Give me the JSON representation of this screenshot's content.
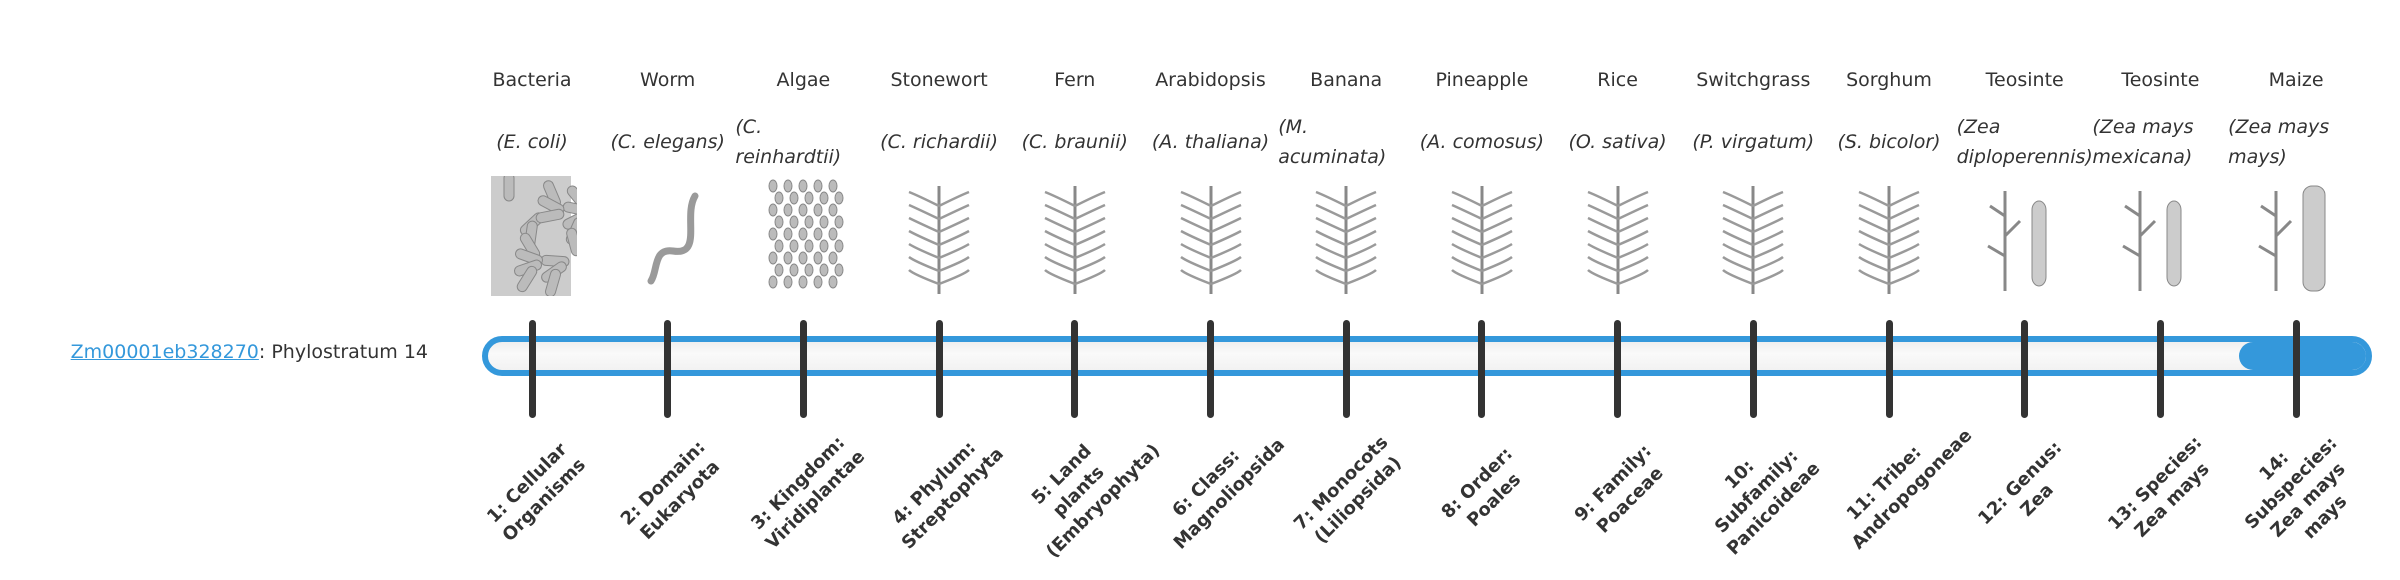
{
  "gene": {
    "id": "Zm00001eb328270",
    "suffix": ": Phylostratum 14"
  },
  "colors": {
    "accent": "#3498db",
    "tick": "#333333"
  },
  "progress": {
    "current": 14,
    "total": 14
  },
  "strata": [
    {
      "common": "Bacteria",
      "latin": "(E. coli)",
      "icon": "bacteria-icon",
      "rank": "1: Cellular Organisms"
    },
    {
      "common": "Worm",
      "latin": "(C. elegans)",
      "icon": "worm-icon",
      "rank": "2: Domain: Eukaryota"
    },
    {
      "common": "Algae",
      "latin": "(C. reinhardtii)",
      "icon": "algae-icon",
      "rank": "3: Kingdom: Viridiplantae"
    },
    {
      "common": "Stonewort",
      "latin": "(C. richardii)",
      "icon": "stonewort-icon",
      "rank": "4: Phylum: Streptophyta"
    },
    {
      "common": "Fern",
      "latin": "(C. braunii)",
      "icon": "fern-icon",
      "rank": "5: Land plants (Embryophyta)"
    },
    {
      "common": "Arabidopsis",
      "latin": "(A. thaliana)",
      "icon": "arabidopsis-icon",
      "rank": "6: Class: Magnoliopsida"
    },
    {
      "common": "Banana",
      "latin": "(M. acuminata)",
      "icon": "banana-icon",
      "rank": "7: Monocots (Liliopsida)"
    },
    {
      "common": "Pineapple",
      "latin": "(A. comosus)",
      "icon": "pineapple-icon",
      "rank": "8: Order: Poales"
    },
    {
      "common": "Rice",
      "latin": "(O. sativa)",
      "icon": "rice-icon",
      "rank": "9: Family: Poaceae"
    },
    {
      "common": "Switchgrass",
      "latin": "(P. virgatum)",
      "icon": "switchgrass-icon",
      "rank": "10: Subfamily: Panicoideae"
    },
    {
      "common": "Sorghum",
      "latin": "(S. bicolor)",
      "icon": "sorghum-icon",
      "rank": "11: Tribe: Andropogoneae"
    },
    {
      "common": "Teosinte",
      "latin": "(Zea diploperennis)",
      "icon": "teosinte-icon",
      "rank": "12: Genus: Zea"
    },
    {
      "common": "Teosinte",
      "latin": "(Zea mays mexicana)",
      "icon": "teosinte-icon",
      "rank": "13: Species: Zea mays"
    },
    {
      "common": "Maize",
      "latin": "(Zea mays mays)",
      "icon": "maize-icon",
      "rank": "14: Subspecies: Zea mays mays"
    }
  ]
}
